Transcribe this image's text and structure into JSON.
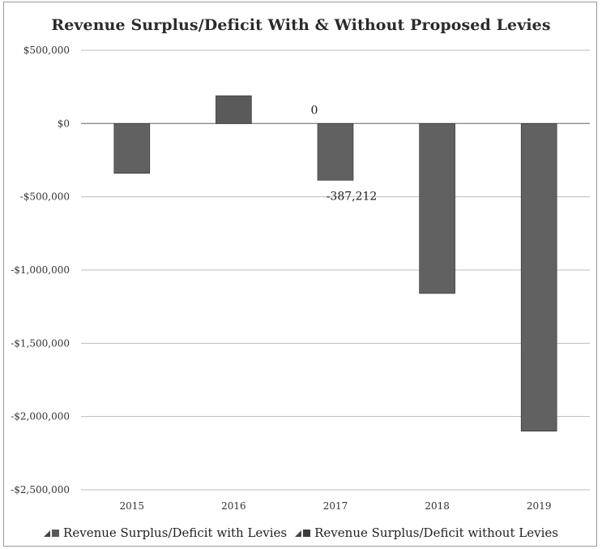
{
  "chart_data": {
    "type": "bar",
    "title": "Revenue Surplus/Deficit With & Without Proposed Levies",
    "xlabel": "",
    "ylabel": "",
    "categories": [
      "2015",
      "2016",
      "2017",
      "2018",
      "2019"
    ],
    "ylim": [
      -2500000,
      500000
    ],
    "y_ticks": [
      500000,
      0,
      -500000,
      -1000000,
      -1500000,
      -2000000,
      -2500000
    ],
    "y_tick_labels": [
      "$500,000",
      "$0",
      "-$500,000",
      "-$1,000,000",
      "-$1,500,000",
      "-$2,000,000",
      "-$2,500,000"
    ],
    "grid": true,
    "legend_position": "bottom",
    "series": [
      {
        "name": "Revenue Surplus/Deficit with Levies",
        "color": "#5a5a5a",
        "values": [
          null,
          190000,
          0,
          null,
          null
        ],
        "data_labels": [
          null,
          null,
          "0",
          null,
          null
        ]
      },
      {
        "name": "Revenue Surplus/Deficit without Levies",
        "color": "#3a3a3a",
        "values": [
          -340000,
          null,
          -387212,
          -1160000,
          -2100000
        ],
        "data_labels": [
          null,
          null,
          "-387,212",
          null,
          null
        ]
      }
    ],
    "bar_colors": [
      [
        "#5a5a5a",
        "#5a5a5a",
        "#5a5a5a",
        "#5a5a5a",
        "#5a5a5a"
      ],
      [
        "#616161",
        "#333333",
        "#616161",
        "#616161",
        "#616161"
      ]
    ]
  }
}
